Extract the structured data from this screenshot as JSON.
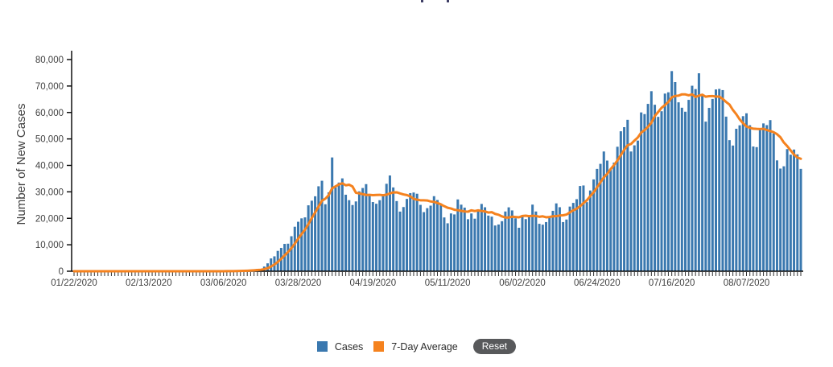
{
  "page": {
    "background": "#ffffff"
  },
  "clipped_title": {
    "note": "title cut off at top edge; only two letter descenders visible"
  },
  "chart": {
    "y_axis": {
      "title": "Number of New Cases",
      "min": 0,
      "max": 80000,
      "tick_labels": [
        {
          "label": "0",
          "value": 0
        },
        {
          "label": "10,000",
          "value": 10000
        },
        {
          "label": "20,000",
          "value": 20000
        },
        {
          "label": "30,000",
          "value": 30000
        },
        {
          "label": "40,000",
          "value": 40000
        },
        {
          "label": "50,000",
          "value": 50000
        },
        {
          "label": "60,000",
          "value": 60000
        },
        {
          "label": "70,000",
          "value": 70000
        },
        {
          "label": "80,000",
          "value": 80000
        }
      ]
    },
    "x_axis": {
      "tick_labels": [
        {
          "label": "01/22/2020",
          "day": 0
        },
        {
          "label": "02/13/2020",
          "day": 22
        },
        {
          "label": "03/06/2020",
          "day": 44
        },
        {
          "label": "03/28/2020",
          "day": 66
        },
        {
          "label": "04/19/2020",
          "day": 88
        },
        {
          "label": "05/11/2020",
          "day": 110
        },
        {
          "label": "06/02/2020",
          "day": 132
        },
        {
          "label": "06/24/2020",
          "day": 154
        },
        {
          "label": "07/16/2020",
          "day": 176
        },
        {
          "label": "08/07/2020",
          "day": 198
        }
      ]
    },
    "colors": {
      "bar": "#3A78AF",
      "line": "#F5821E",
      "axis": "#000000",
      "tick": "#333333",
      "label_text": "#404040"
    }
  },
  "legend": {
    "cases_label": "Cases",
    "avg_label": "7-Day Average",
    "reset_label": "Reset",
    "cases_color": "#3A78AF",
    "avg_color": "#F5821E",
    "reset_bg": "#58595B"
  },
  "chart_data": {
    "type": "bar",
    "title": "",
    "xlabel": "",
    "ylabel": "Number of New Cases",
    "ylim": [
      0,
      80000
    ],
    "grid": false,
    "legend_position": "bottom-center",
    "x_start_label": "01/22/2020",
    "n_days": 215,
    "x_tick_labels": [
      "01/22/2020",
      "02/13/2020",
      "03/06/2020",
      "03/28/2020",
      "04/19/2020",
      "05/11/2020",
      "06/02/2020",
      "06/24/2020",
      "07/16/2020",
      "08/07/2020"
    ],
    "series": [
      {
        "name": "Cases",
        "type": "bar",
        "values": [
          1,
          0,
          1,
          0,
          3,
          0,
          0,
          0,
          0,
          2,
          1,
          0,
          0,
          0,
          2,
          1,
          0,
          0,
          0,
          0,
          1,
          0,
          1,
          1,
          0,
          0,
          0,
          2,
          0,
          0,
          1,
          1,
          2,
          0,
          1,
          0,
          6,
          1,
          5,
          4,
          3,
          14,
          21,
          30,
          31,
          68,
          95,
          121,
          200,
          271,
          287,
          372,
          511,
          698,
          827,
          887,
          1766,
          2988,
          4835,
          5632,
          7694,
          8809,
          10330,
          10410,
          13228,
          16819,
          18695,
          19979,
          20353,
          24914,
          26655,
          28325,
          32105,
          34196,
          25316,
          29822,
          43000,
          31709,
          33510,
          35098,
          28917,
          26857,
          25023,
          26385,
          30190,
          31451,
          32922,
          29065,
          26154,
          25507,
          26845,
          29006,
          33049,
          36188,
          31672,
          26509,
          22541,
          24260,
          27327,
          29517,
          29744,
          29288,
          25081,
          22334,
          23841,
          24789,
          28369,
          26906,
          25612,
          20329,
          18117,
          21841,
          21467,
          27143,
          25156,
          24047,
          19662,
          21832,
          19869,
          23288,
          25434,
          24169,
          21023,
          20634,
          17286,
          17664,
          18910,
          22577,
          24146,
          22982,
          20007,
          16429,
          21140,
          19699,
          21140,
          25176,
          22577,
          17919,
          17598,
          18577,
          20574,
          22834,
          25640,
          24194,
          18577,
          19543,
          24437,
          25821,
          27233,
          32218,
          32411,
          26109,
          30522,
          34700,
          38672,
          40588,
          45255,
          41823,
          38673,
          41055,
          47049,
          52898,
          54448,
          57236,
          45255,
          47576,
          49371,
          60021,
          59389,
          63247,
          68042,
          62918,
          58349,
          60469,
          67140,
          67632,
          75643,
          71484,
          63840,
          61795,
          60291,
          64771,
          70106,
          68832,
          74818,
          66350,
          56540,
          61734,
          65129,
          68696,
          68912,
          68458,
          58429,
          49536,
          47508,
          53847,
          55148,
          58611,
          59692,
          55176,
          47138,
          46906,
          53490,
          55862,
          55220,
          57120,
          52074,
          41893,
          38795,
          39662,
          46160,
          44059,
          45993,
          44172,
          38679
        ]
      },
      {
        "name": "7-Day Average",
        "type": "line",
        "definition": "7-day moving average of Cases series"
      }
    ]
  }
}
